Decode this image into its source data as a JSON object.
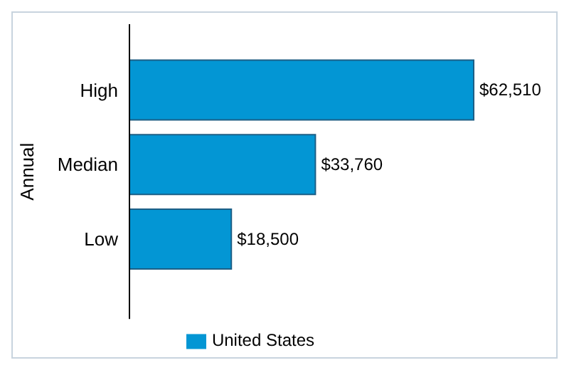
{
  "chart_data": {
    "type": "bar",
    "orientation": "horizontal",
    "ylabel": "Annual",
    "categories": [
      "High",
      "Median",
      "Low"
    ],
    "series": [
      {
        "name": "United States",
        "color": "#0396d4",
        "values": [
          62510,
          33760,
          18500
        ],
        "value_labels": [
          "$62,510",
          "$33,760",
          "$18,500"
        ]
      }
    ],
    "legend": "bottom",
    "grid": false
  }
}
